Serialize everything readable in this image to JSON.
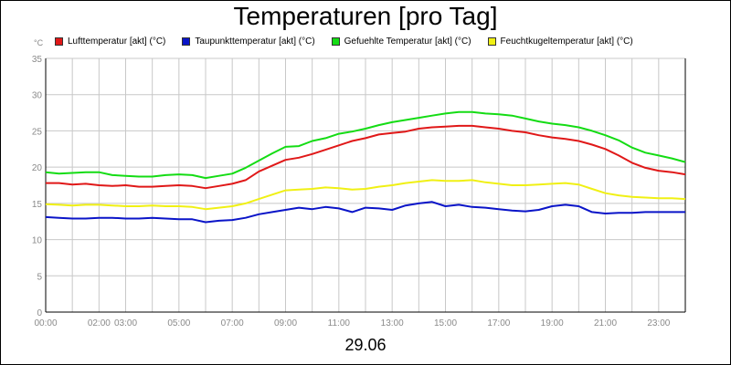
{
  "chart_data": {
    "type": "line",
    "title": "Temperaturen [pro Tag]",
    "y_unit_label": "°C",
    "date_label": "29.06",
    "ylim": [
      0,
      35
    ],
    "y_ticks": [
      0,
      5,
      10,
      15,
      20,
      25,
      30,
      35
    ],
    "xlim": [
      0,
      24
    ],
    "x_ticks": [
      {
        "x": 0,
        "label": "00:00"
      },
      {
        "x": 2,
        "label": "02:00"
      },
      {
        "x": 3,
        "label": "03:00"
      },
      {
        "x": 5,
        "label": "05:00"
      },
      {
        "x": 7,
        "label": "07:00"
      },
      {
        "x": 9,
        "label": "09:00"
      },
      {
        "x": 11,
        "label": "11:00"
      },
      {
        "x": 13,
        "label": "13:00"
      },
      {
        "x": 15,
        "label": "15:00"
      },
      {
        "x": 17,
        "label": "17:00"
      },
      {
        "x": 19,
        "label": "19:00"
      },
      {
        "x": 21,
        "label": "21:00"
      },
      {
        "x": 23,
        "label": "23:00"
      }
    ],
    "grid": true,
    "legend_position": "top",
    "x": [
      0,
      0.5,
      1,
      1.5,
      2,
      2.5,
      3,
      3.5,
      4,
      4.5,
      5,
      5.5,
      6,
      6.5,
      7,
      7.5,
      8,
      8.5,
      9,
      9.5,
      10,
      10.5,
      11,
      11.5,
      12,
      12.5,
      13,
      13.5,
      14,
      14.5,
      15,
      15.5,
      16,
      16.5,
      17,
      17.5,
      18,
      18.5,
      19,
      19.5,
      20,
      20.5,
      21,
      21.5,
      22,
      22.5,
      23,
      23.5,
      24
    ],
    "series": [
      {
        "name": "Lufttemperatur [akt] (°C)",
        "color": "#e01818",
        "values": [
          17.8,
          17.8,
          17.6,
          17.7,
          17.5,
          17.4,
          17.5,
          17.3,
          17.3,
          17.4,
          17.5,
          17.4,
          17.1,
          17.4,
          17.7,
          18.2,
          19.4,
          20.2,
          21.0,
          21.3,
          21.8,
          22.4,
          23.0,
          23.6,
          24.0,
          24.5,
          24.7,
          24.9,
          25.3,
          25.5,
          25.6,
          25.7,
          25.7,
          25.5,
          25.3,
          25.0,
          24.8,
          24.4,
          24.1,
          23.9,
          23.6,
          23.1,
          22.5,
          21.6,
          20.6,
          19.9,
          19.5,
          19.3,
          19.0
        ]
      },
      {
        "name": "Taupunkttemperatur [akt] (°C)",
        "color": "#0a14c8",
        "values": [
          13.1,
          13.0,
          12.9,
          12.9,
          13.0,
          13.0,
          12.9,
          12.9,
          13.0,
          12.9,
          12.8,
          12.8,
          12.4,
          12.6,
          12.7,
          13.0,
          13.5,
          13.8,
          14.1,
          14.4,
          14.2,
          14.5,
          14.3,
          13.8,
          14.4,
          14.3,
          14.1,
          14.7,
          15.0,
          15.2,
          14.6,
          14.8,
          14.5,
          14.4,
          14.2,
          14.0,
          13.9,
          14.1,
          14.6,
          14.8,
          14.6,
          13.8,
          13.6,
          13.7,
          13.7,
          13.8,
          13.8,
          13.8,
          13.8
        ]
      },
      {
        "name": "Gefuehlte Temperatur [akt] (°C)",
        "color": "#14dc14",
        "values": [
          19.3,
          19.1,
          19.2,
          19.3,
          19.3,
          18.9,
          18.8,
          18.7,
          18.7,
          18.9,
          19.0,
          18.9,
          18.5,
          18.8,
          19.1,
          19.9,
          20.9,
          21.9,
          22.8,
          22.9,
          23.6,
          24.0,
          24.6,
          24.9,
          25.3,
          25.8,
          26.2,
          26.5,
          26.8,
          27.1,
          27.4,
          27.6,
          27.6,
          27.4,
          27.3,
          27.1,
          26.7,
          26.3,
          26.0,
          25.8,
          25.5,
          25.0,
          24.4,
          23.7,
          22.7,
          22.0,
          21.6,
          21.2,
          20.7
        ]
      },
      {
        "name": "Feuchtkugeltemperatur [akt] (°C)",
        "color": "#f0f014",
        "values": [
          14.9,
          14.8,
          14.7,
          14.8,
          14.8,
          14.7,
          14.6,
          14.6,
          14.7,
          14.6,
          14.6,
          14.5,
          14.2,
          14.4,
          14.6,
          15.0,
          15.6,
          16.2,
          16.8,
          16.9,
          17.0,
          17.2,
          17.1,
          16.9,
          17.0,
          17.3,
          17.5,
          17.8,
          18.0,
          18.2,
          18.1,
          18.1,
          18.2,
          17.9,
          17.7,
          17.5,
          17.5,
          17.6,
          17.7,
          17.8,
          17.6,
          17.0,
          16.4,
          16.1,
          15.9,
          15.8,
          15.7,
          15.7,
          15.6
        ]
      }
    ]
  }
}
